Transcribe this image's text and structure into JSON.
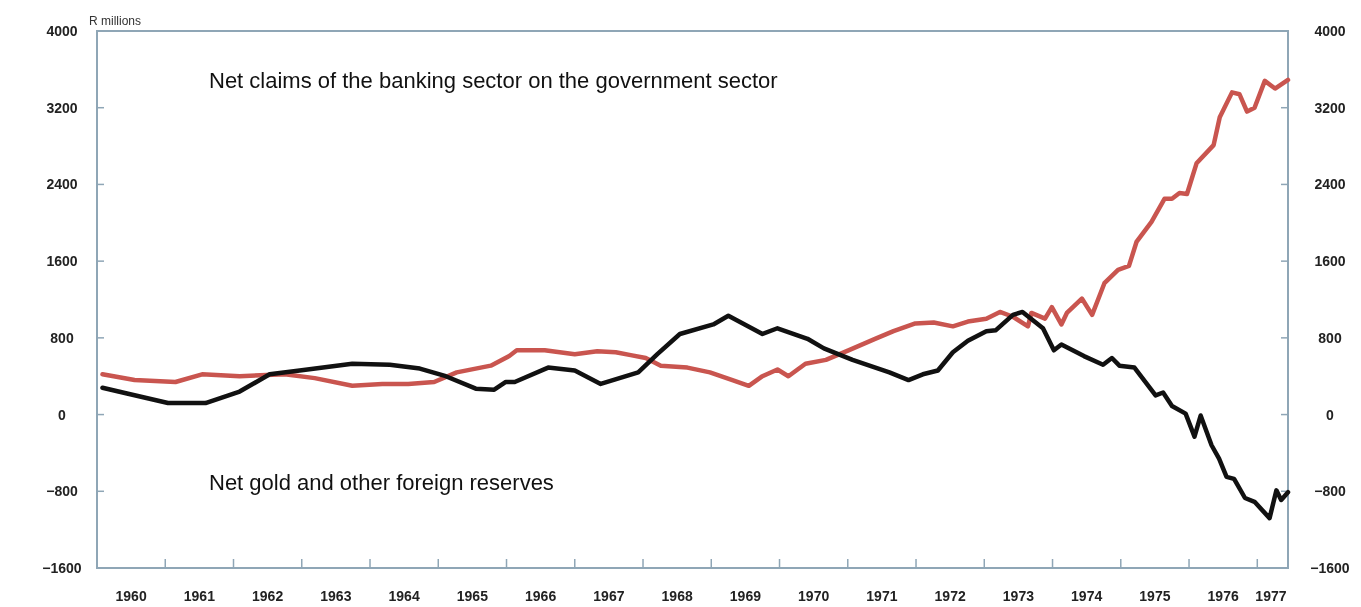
{
  "chart_data": {
    "type": "line",
    "ylabel": "R millions",
    "annotations": [
      "Net claims of the banking sector on the government sector",
      "Net gold and other foreign reserves"
    ],
    "xlim": [
      1960,
      1977.45
    ],
    "xticks": [
      {
        "value": 1960.5,
        "label": "1960"
      },
      {
        "value": 1961,
        "label": null
      },
      {
        "value": 1961.5,
        "label": "1961"
      },
      {
        "value": 1962,
        "label": null
      },
      {
        "value": 1962.5,
        "label": "1962"
      },
      {
        "value": 1963,
        "label": null
      },
      {
        "value": 1963.5,
        "label": "1963"
      },
      {
        "value": 1964,
        "label": null
      },
      {
        "value": 1964.5,
        "label": "1964"
      },
      {
        "value": 1965,
        "label": null
      },
      {
        "value": 1965.5,
        "label": "1965"
      },
      {
        "value": 1966,
        "label": null
      },
      {
        "value": 1966.5,
        "label": "1966"
      },
      {
        "value": 1967,
        "label": null
      },
      {
        "value": 1967.5,
        "label": "1967"
      },
      {
        "value": 1968,
        "label": null
      },
      {
        "value": 1968.5,
        "label": "1968"
      },
      {
        "value": 1969,
        "label": null
      },
      {
        "value": 1969.5,
        "label": "1969"
      },
      {
        "value": 1970,
        "label": null
      },
      {
        "value": 1970.5,
        "label": "1970"
      },
      {
        "value": 1971,
        "label": null
      },
      {
        "value": 1971.5,
        "label": "1971"
      },
      {
        "value": 1972,
        "label": null
      },
      {
        "value": 1972.5,
        "label": "1972"
      },
      {
        "value": 1973,
        "label": null
      },
      {
        "value": 1973.5,
        "label": "1973"
      },
      {
        "value": 1974,
        "label": null
      },
      {
        "value": 1974.5,
        "label": "1974"
      },
      {
        "value": 1975,
        "label": null
      },
      {
        "value": 1975.5,
        "label": "1975"
      },
      {
        "value": 1976,
        "label": null
      },
      {
        "value": 1976.5,
        "label": "1976"
      },
      {
        "value": 1977,
        "label": null
      },
      {
        "value": 1977.2,
        "label": "1977"
      }
    ],
    "ylim": [
      -1600,
      4000
    ],
    "yticks": [
      {
        "value": -1600,
        "label": "−1600"
      },
      {
        "value": -800,
        "label": "−800"
      },
      0,
      800,
      1600,
      2400,
      3200,
      4000
    ],
    "y2lim": [
      -1600,
      4000
    ],
    "y2ticks": [
      {
        "value": -1600,
        "label": "−1600"
      },
      {
        "value": -800,
        "label": "−800"
      },
      0,
      800,
      1600,
      2400,
      3200,
      4000
    ],
    "marker": "none",
    "line_style": "solid",
    "series": [
      {
        "color": "#c9554f",
        "x": [
          1960.08,
          1960.55,
          1961.15,
          1961.54,
          1962.09,
          1962.75,
          1963.19,
          1963.74,
          1964.18,
          1964.56,
          1964.94,
          1965.27,
          1965.77,
          1966.04,
          1966.15,
          1966.56,
          1967.0,
          1967.33,
          1967.6,
          1967.82,
          1968.04,
          1968.26,
          1968.65,
          1968.98,
          1969.31,
          1969.55,
          1969.75,
          1969.97,
          1970.13,
          1970.38,
          1970.68,
          1971.01,
          1971.4,
          1971.67,
          1971.99,
          1972.26,
          1972.54,
          1972.76,
          1973.03,
          1973.23,
          1973.42,
          1973.64,
          1973.69,
          1973.89,
          1973.99,
          1974.13,
          1974.21,
          1974.43,
          1974.58,
          1974.76,
          1974.96,
          1975.12,
          1975.23,
          1975.45,
          1975.64,
          1975.75,
          1975.86,
          1975.97,
          1976.11,
          1976.36,
          1976.45,
          1976.63,
          1976.74,
          1976.85,
          1976.96,
          1977.11,
          1977.26,
          1977.45
        ],
        "values": [
          420,
          360,
          340,
          420,
          400,
          420,
          380,
          300,
          320,
          320,
          340,
          440,
          510,
          610,
          670,
          670,
          630,
          660,
          650,
          620,
          590,
          510,
          490,
          440,
          360,
          300,
          400,
          470,
          400,
          530,
          570,
          670,
          790,
          870,
          950,
          960,
          920,
          970,
          1000,
          1070,
          1020,
          920,
          1060,
          1000,
          1120,
          940,
          1060,
          1210,
          1040,
          1370,
          1510,
          1550,
          1800,
          2010,
          2250,
          2250,
          2310,
          2300,
          2620,
          2810,
          3100,
          3360,
          3340,
          3160,
          3200,
          3480,
          3400,
          3490
        ]
      },
      {
        "color": "#111111",
        "x": [
          1960.08,
          1960.44,
          1961.04,
          1961.59,
          1962.09,
          1962.53,
          1962.97,
          1963.74,
          1964.29,
          1964.73,
          1965.11,
          1965.55,
          1965.82,
          1965.99,
          1966.12,
          1966.61,
          1967.0,
          1967.38,
          1967.93,
          1968.21,
          1968.54,
          1969.03,
          1969.25,
          1969.75,
          1969.97,
          1970.41,
          1970.65,
          1971.07,
          1971.61,
          1971.89,
          1972.1,
          1972.32,
          1972.54,
          1972.76,
          1973.03,
          1973.17,
          1973.42,
          1973.56,
          1973.86,
          1974.02,
          1974.13,
          1974.46,
          1974.74,
          1974.87,
          1974.98,
          1975.2,
          1975.51,
          1975.62,
          1975.75,
          1975.95,
          1976.08,
          1976.17,
          1976.33,
          1976.44,
          1976.55,
          1976.66,
          1976.82,
          1976.96,
          1977.18,
          1977.28,
          1977.35,
          1977.45
        ],
        "values": [
          280,
          220,
          120,
          120,
          240,
          420,
          460,
          530,
          520,
          480,
          400,
          270,
          260,
          340,
          340,
          490,
          460,
          320,
          440,
          630,
          840,
          940,
          1030,
          840,
          900,
          790,
          690,
          570,
          440,
          360,
          420,
          460,
          650,
          770,
          870,
          880,
          1040,
          1070,
          900,
          670,
          730,
          610,
          520,
          590,
          510,
          490,
          200,
          230,
          90,
          10,
          -230,
          -10,
          -320,
          -460,
          -650,
          -670,
          -870,
          -910,
          -1080,
          -790,
          -890,
          -810
        ]
      }
    ]
  }
}
